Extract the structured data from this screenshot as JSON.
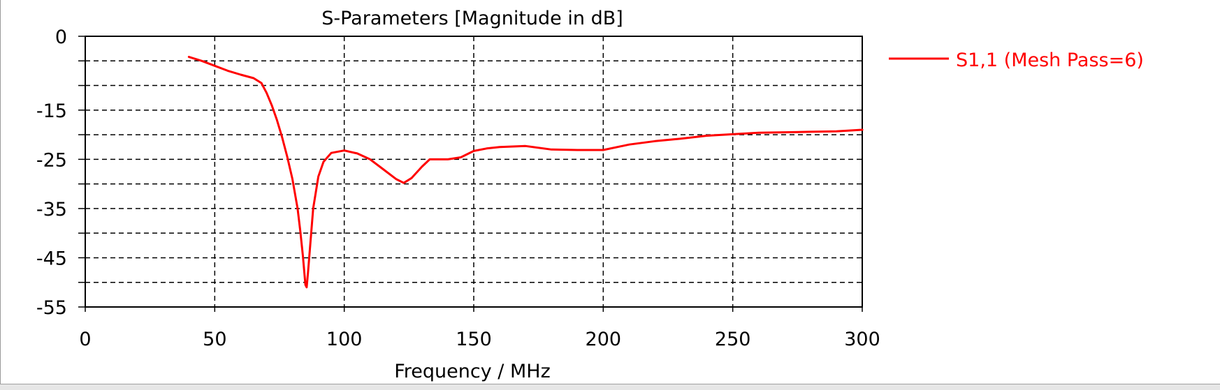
{
  "chart_data": {
    "type": "line",
    "title": "S-Parameters [Magnitude in dB]",
    "xlabel": "Frequency / MHz",
    "ylabel": "",
    "xlim": [
      0,
      300
    ],
    "ylim": [
      -55,
      0
    ],
    "x_ticks": [
      0,
      50,
      100,
      150,
      200,
      250,
      300
    ],
    "y_ticks": [
      0,
      -15,
      -25,
      -35,
      -45,
      -55
    ],
    "x_gridlines": [
      50,
      100,
      150,
      200,
      250
    ],
    "y_gridlines": [
      -5,
      -10,
      -15,
      -20,
      -25,
      -30,
      -35,
      -40,
      -45,
      -50
    ],
    "grid": true,
    "legend_position": "right",
    "series": [
      {
        "name": "S1,1 (Mesh Pass=6)",
        "color": "#ff0000",
        "x": [
          40,
          45,
          50,
          55,
          60,
          65,
          68,
          70,
          72,
          74,
          76,
          78,
          80,
          82,
          83,
          84,
          85,
          85.5,
          86,
          87,
          88,
          90,
          92,
          95,
          100,
          105,
          110,
          115,
          120,
          123,
          126,
          130,
          133,
          140,
          145,
          150,
          155,
          160,
          170,
          180,
          190,
          200,
          210,
          220,
          230,
          240,
          250,
          260,
          270,
          280,
          290,
          300
        ],
        "y": [
          -4.2,
          -5,
          -6,
          -7,
          -7.8,
          -8.5,
          -9.5,
          -11.5,
          -14,
          -17,
          -20.5,
          -24.5,
          -29,
          -35,
          -39.5,
          -44.5,
          -50.5,
          -51,
          -48,
          -41.5,
          -35,
          -28.5,
          -25.5,
          -23.7,
          -23.2,
          -23.8,
          -25,
          -27,
          -29,
          -29.8,
          -28.8,
          -26.5,
          -25,
          -25,
          -24.6,
          -23.3,
          -22.8,
          -22.5,
          -22.3,
          -23,
          -23.1,
          -23.1,
          -22,
          -21.3,
          -20.8,
          -20.2,
          -19.9,
          -19.6,
          -19.5,
          -19.4,
          -19.3,
          -19.0
        ]
      }
    ]
  }
}
